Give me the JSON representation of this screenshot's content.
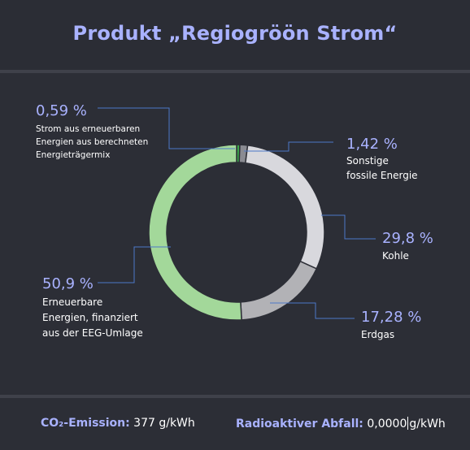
{
  "title": "Produkt „Regiogröön Strom“",
  "chart_data": {
    "type": "pie",
    "variant": "donut",
    "slices": [
      {
        "label": "Strom aus erneuerbaren Energien aus berechneten Energieträgermix",
        "value": 0.59,
        "value_label": "0,59 %",
        "color": "#3aa64a"
      },
      {
        "label": "Sonstige fossile Energie",
        "value": 1.42,
        "value_label": "1,42 %",
        "color": "#8a8b92"
      },
      {
        "label": "Kohle",
        "value": 29.8,
        "value_label": "29,8 %",
        "color": "#d8d8dd"
      },
      {
        "label": "Erdgas",
        "value": 17.28,
        "value_label": "17,28 %",
        "color": "#b2b2b6"
      },
      {
        "label": "Erneuerbare Energien, finanziert aus der EEG-Umlage",
        "value": 50.9,
        "value_label": "50,9 %",
        "color": "#a3d89a"
      }
    ]
  },
  "labels": {
    "s0_lines": [
      "Strom aus erneuerbaren",
      "Energien aus berechneten",
      "Energieträgermix"
    ],
    "s1_lines": [
      "Sonstige",
      "fossile Energie"
    ],
    "s2_lines": [
      "Kohle"
    ],
    "s3_lines": [
      "Erdgas"
    ],
    "s4_lines": [
      "Erneuerbare",
      "Energien, finanziert",
      "aus der EEG-Umlage"
    ]
  },
  "footer": {
    "co2_label": "CO₂-Emission:",
    "co2_value": "377 g/kWh",
    "waste_label": "Radioaktiver Abfall:",
    "waste_value_a": "0,0000",
    "waste_value_b": "g/kWh"
  },
  "colors": {
    "accent": "#a9b2ff",
    "background": "#2c2e36",
    "divider": "#3f414a"
  }
}
